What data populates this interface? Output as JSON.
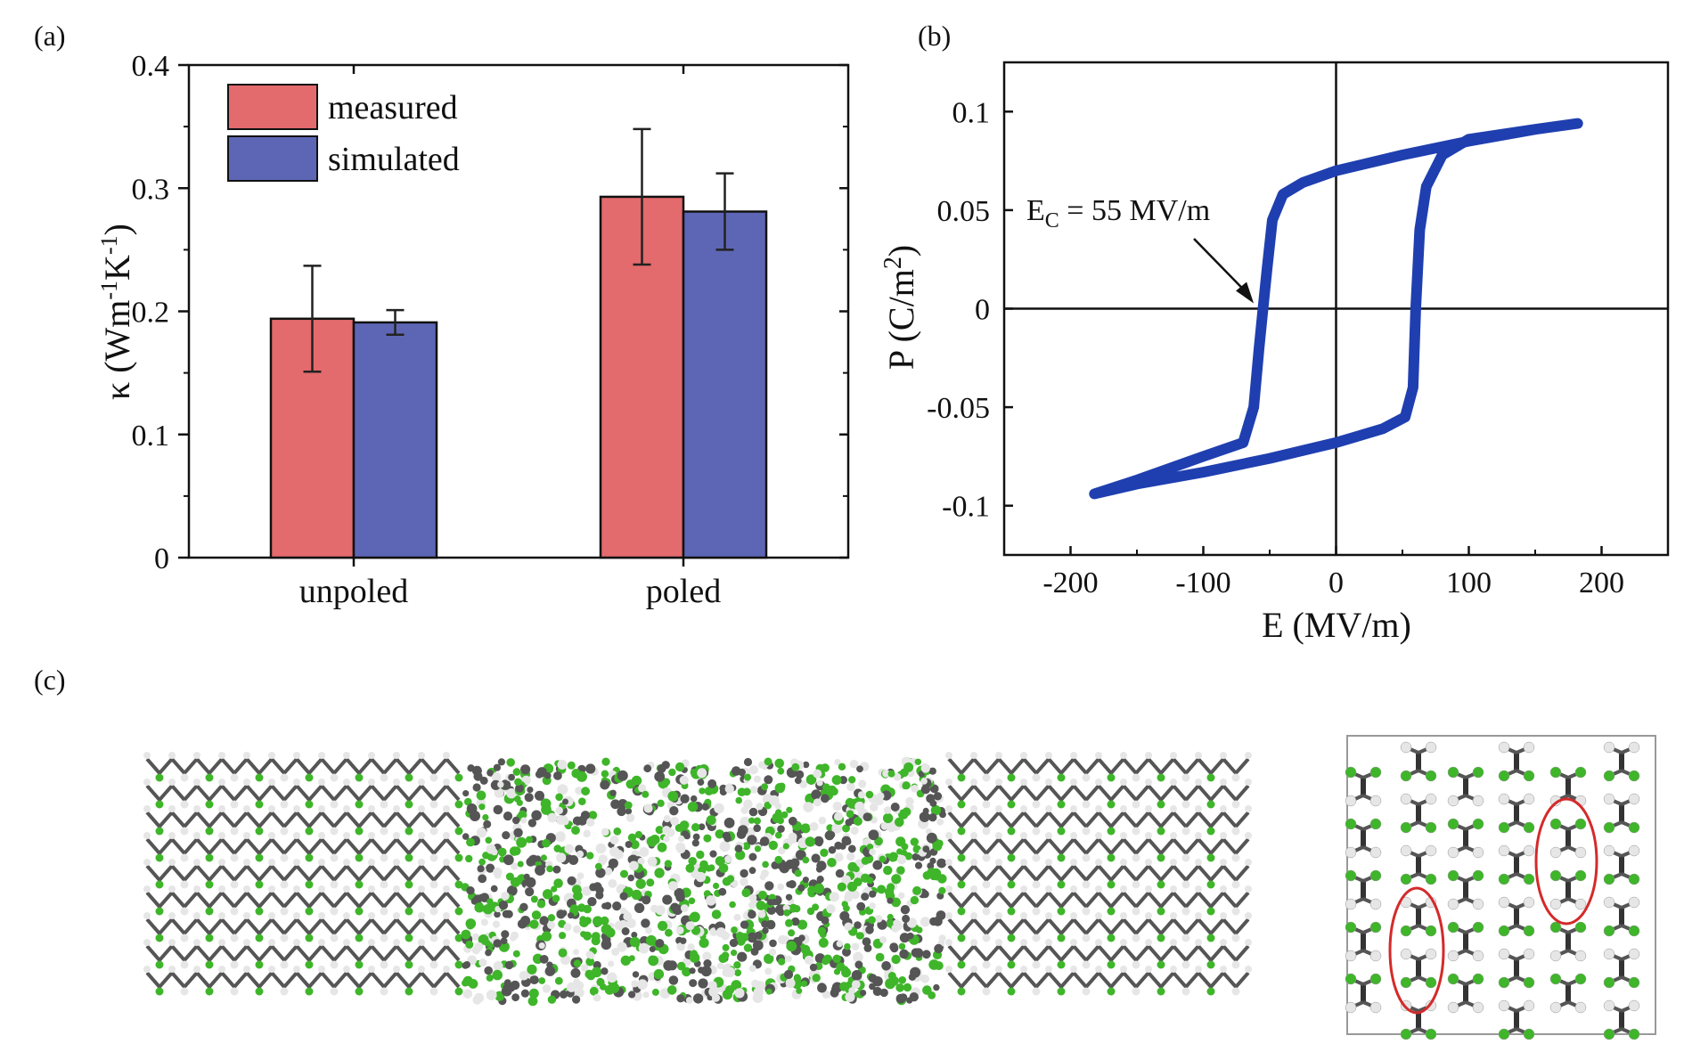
{
  "panels": {
    "a_label": "(a)",
    "b_label": "(b)",
    "c_label": "(c)"
  },
  "chart_data": [
    {
      "type": "bar",
      "panel": "(a)",
      "categories": [
        "unpoled",
        "poled"
      ],
      "series": [
        {
          "name": "measured",
          "values": [
            0.194,
            0.293
          ],
          "errors": [
            0.043,
            0.055
          ],
          "color": "#e36a6d"
        },
        {
          "name": "simulated",
          "values": [
            0.191,
            0.281
          ],
          "errors": [
            0.01,
            0.031
          ],
          "color": "#5d66b5"
        }
      ],
      "ylim": [
        0,
        0.4
      ],
      "yticks": [
        0,
        0.1,
        0.2,
        0.3,
        0.4
      ],
      "ytick_labels": [
        "0",
        "0.1",
        "0.2",
        "0.3",
        "0.4"
      ],
      "ylabel": "κ (Wm⁻¹K⁻¹)",
      "ylabel_parts": {
        "pre": "κ (Wm",
        "sup1": "-1",
        "mid": "K",
        "sup2": "-1",
        "post": ")"
      },
      "legend_position": "top-left"
    },
    {
      "type": "line",
      "panel": "(b)",
      "xlabel": "E (MV/m)",
      "ylabel": "P (C/m²)",
      "ylabel_parts": {
        "pre": "P (C/m",
        "sup": "2",
        "post": ")"
      },
      "xlim": [
        -250,
        250
      ],
      "ylim": [
        -0.125,
        0.125
      ],
      "xticks": [
        -200,
        -100,
        0,
        100,
        200
      ],
      "xtick_labels": [
        "-200",
        "-100",
        "0",
        "100",
        "200"
      ],
      "yticks": [
        -0.1,
        -0.05,
        0,
        0.05,
        0.1
      ],
      "ytick_labels": [
        "-0.1",
        "-0.05",
        "0",
        "0.05",
        "0.1"
      ],
      "series_color": "#1f3fb0",
      "upper_branch": [
        [
          -182,
          -0.094
        ],
        [
          -150,
          -0.087
        ],
        [
          -100,
          -0.075
        ],
        [
          -70,
          -0.068
        ],
        [
          -62,
          -0.05
        ],
        [
          -58,
          -0.02
        ],
        [
          -55,
          0.0
        ],
        [
          -52,
          0.02
        ],
        [
          -48,
          0.045
        ],
        [
          -40,
          0.058
        ],
        [
          -25,
          0.064
        ],
        [
          0,
          0.07
        ],
        [
          50,
          0.078
        ],
        [
          100,
          0.085
        ],
        [
          150,
          0.091
        ],
        [
          182,
          0.094
        ]
      ],
      "lower_branch": [
        [
          182,
          0.094
        ],
        [
          150,
          0.091
        ],
        [
          100,
          0.086
        ],
        [
          80,
          0.078
        ],
        [
          68,
          0.062
        ],
        [
          63,
          0.04
        ],
        [
          60,
          0.0
        ],
        [
          58,
          -0.04
        ],
        [
          52,
          -0.055
        ],
        [
          35,
          -0.061
        ],
        [
          0,
          -0.068
        ],
        [
          -50,
          -0.076
        ],
        [
          -100,
          -0.083
        ],
        [
          -150,
          -0.089
        ],
        [
          -182,
          -0.094
        ]
      ],
      "annotation": {
        "text_main": "E",
        "text_sub": "C",
        "text_rest": " = 55 MV/m",
        "points_to": [
          -58,
          0.0
        ]
      }
    }
  ],
  "illustrations": {
    "atom_green": "#3fb52a",
    "atom_gray": "#555555",
    "atom_white": "#e6e6e6",
    "highlight_red": "#d42a2a"
  }
}
